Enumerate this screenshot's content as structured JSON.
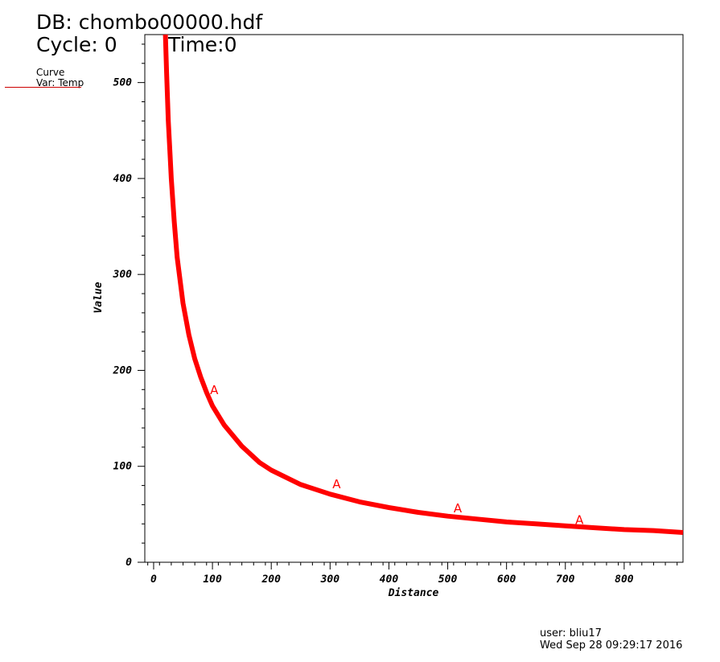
{
  "header": {
    "db": "DB: chombo00000.hdf",
    "cycle": "Cycle: 0",
    "time": "Time:0"
  },
  "legend": {
    "title": "Curve",
    "var": "Var: Temp",
    "color": "#cc0000"
  },
  "footer": {
    "user": "user: bliu17",
    "date": "Wed Sep 28 09:29:17 2016"
  },
  "chart_data": {
    "type": "line",
    "title": "",
    "xlabel": "Distance",
    "ylabel": "Value",
    "xlim": [
      -15,
      900
    ],
    "ylim": [
      0,
      550
    ],
    "x_ticks": [
      0,
      100,
      200,
      300,
      400,
      500,
      600,
      700,
      800
    ],
    "y_ticks": [
      0,
      100,
      200,
      300,
      400,
      500
    ],
    "grid": false,
    "series": [
      {
        "color": "#ff0000",
        "marker_label": "A",
        "x": [
          20,
          22,
          25,
          28,
          30,
          35,
          40,
          50,
          60,
          70,
          80,
          90,
          100,
          120,
          150,
          180,
          200,
          250,
          300,
          350,
          400,
          450,
          500,
          550,
          600,
          650,
          700,
          750,
          800,
          850,
          900
        ],
        "y": [
          550,
          510,
          460,
          425,
          400,
          355,
          318,
          270,
          237,
          212,
          193,
          177,
          163,
          143,
          121,
          104,
          96,
          81,
          71,
          63,
          57,
          52,
          48,
          45,
          42,
          40,
          38,
          36,
          34,
          33,
          31
        ],
        "markers": [
          {
            "x": 103,
            "y": 170
          },
          {
            "x": 311,
            "y": 72
          },
          {
            "x": 517,
            "y": 47
          },
          {
            "x": 724,
            "y": 35
          }
        ]
      }
    ]
  }
}
